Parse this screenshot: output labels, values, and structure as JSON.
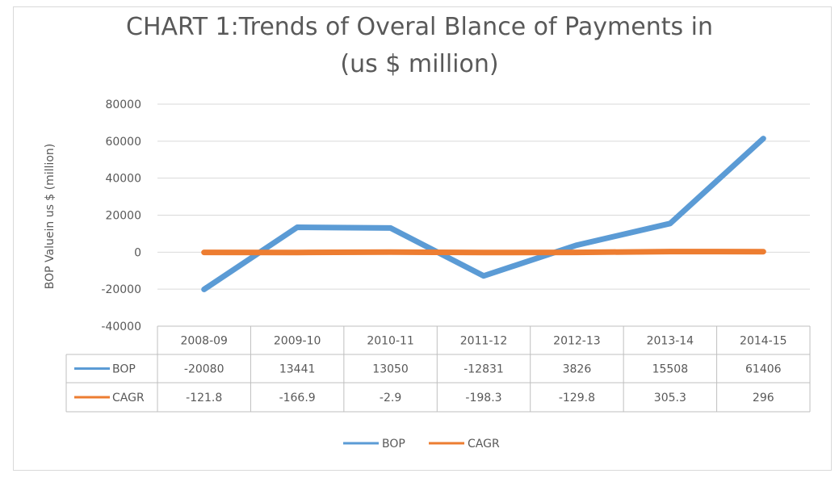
{
  "chart_data": {
    "type": "line",
    "title_line1": "CHART 1:Trends of Overal Blance of Payments in",
    "title_line2": "(us $ million)",
    "ylabel": "BOP Valuein us $ (million)",
    "xlabel": "",
    "categories": [
      "2008-09",
      "2009-10",
      "2010-11",
      "2011-12",
      "2012-13",
      "2013-14",
      "2014-15"
    ],
    "ylim": [
      -40000,
      80000
    ],
    "yticks": [
      80000,
      60000,
      40000,
      20000,
      0,
      -20000,
      -40000
    ],
    "grid": true,
    "legend_position": "bottom",
    "data_table": true,
    "series": [
      {
        "name": "BOP",
        "color": "#5b9bd5",
        "values": [
          -20080,
          13441,
          13050,
          -12831,
          3826,
          15508,
          61406
        ],
        "labels": [
          "-20080",
          "13441",
          "13050",
          "-12831",
          "3826",
          "15508",
          "61406"
        ]
      },
      {
        "name": "CAGR",
        "color": "#ed7d31",
        "values": [
          -121.8,
          -166.9,
          -2.9,
          -198.3,
          -129.8,
          305.3,
          296
        ],
        "labels": [
          "-121.8",
          "-166.9",
          "-2.9",
          "-198.3",
          "-129.8",
          "305.3",
          "296"
        ]
      }
    ]
  }
}
